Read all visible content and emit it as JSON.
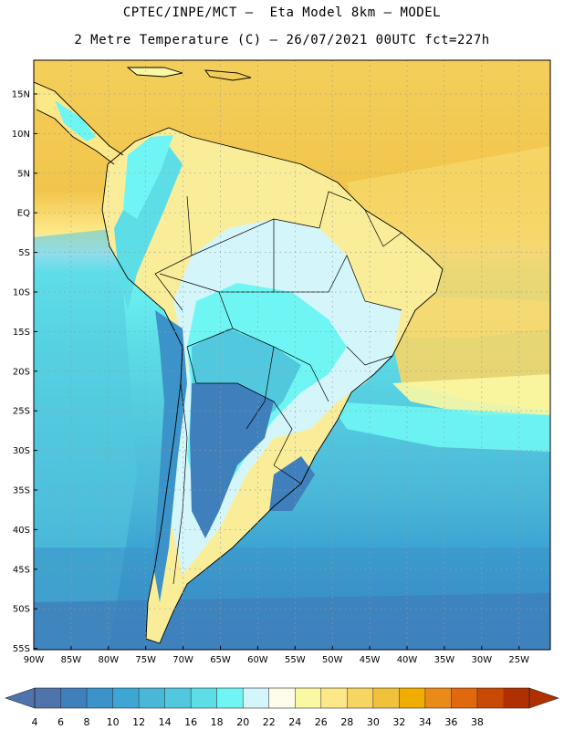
{
  "header": {
    "line1": "CPTEC/INPE/MCT –  Eta Model 8km – MODEL",
    "line2": "2 Metre Temperature (C) – 26/07/2021 00UTC fct=227h"
  },
  "map": {
    "lat_labels": [
      "15N",
      "10N",
      "5N",
      "EQ",
      "5S",
      "10S",
      "15S",
      "20S",
      "25S",
      "30S",
      "35S",
      "40S",
      "45S",
      "50S",
      "55S"
    ],
    "lon_labels": [
      "90W",
      "85W",
      "80W",
      "75W",
      "70W",
      "65W",
      "60W",
      "55W",
      "50W",
      "45W",
      "40W",
      "35W",
      "30W",
      "25W"
    ]
  },
  "colorbar": {
    "ticks": [
      "4",
      "6",
      "8",
      "10",
      "12",
      "14",
      "16",
      "18",
      "20",
      "22",
      "24",
      "26",
      "28",
      "30",
      "32",
      "34",
      "36",
      "38"
    ],
    "colors": [
      "#4f74ab",
      "#3f7fbc",
      "#3b93c9",
      "#3ea6d3",
      "#4ab7d8",
      "#52c8de",
      "#5ddde6",
      "#6ff6f4",
      "#d4f6fb",
      "#fefcea",
      "#fbf8a4",
      "#fde887",
      "#f7d562",
      "#f0c13a",
      "#f0ad00",
      "#ea8a18",
      "#e0680d",
      "#c84a04",
      "#b03002"
    ],
    "left_arrow_color": "#4f74ab",
    "right_arrow_color": "#b03002"
  }
}
